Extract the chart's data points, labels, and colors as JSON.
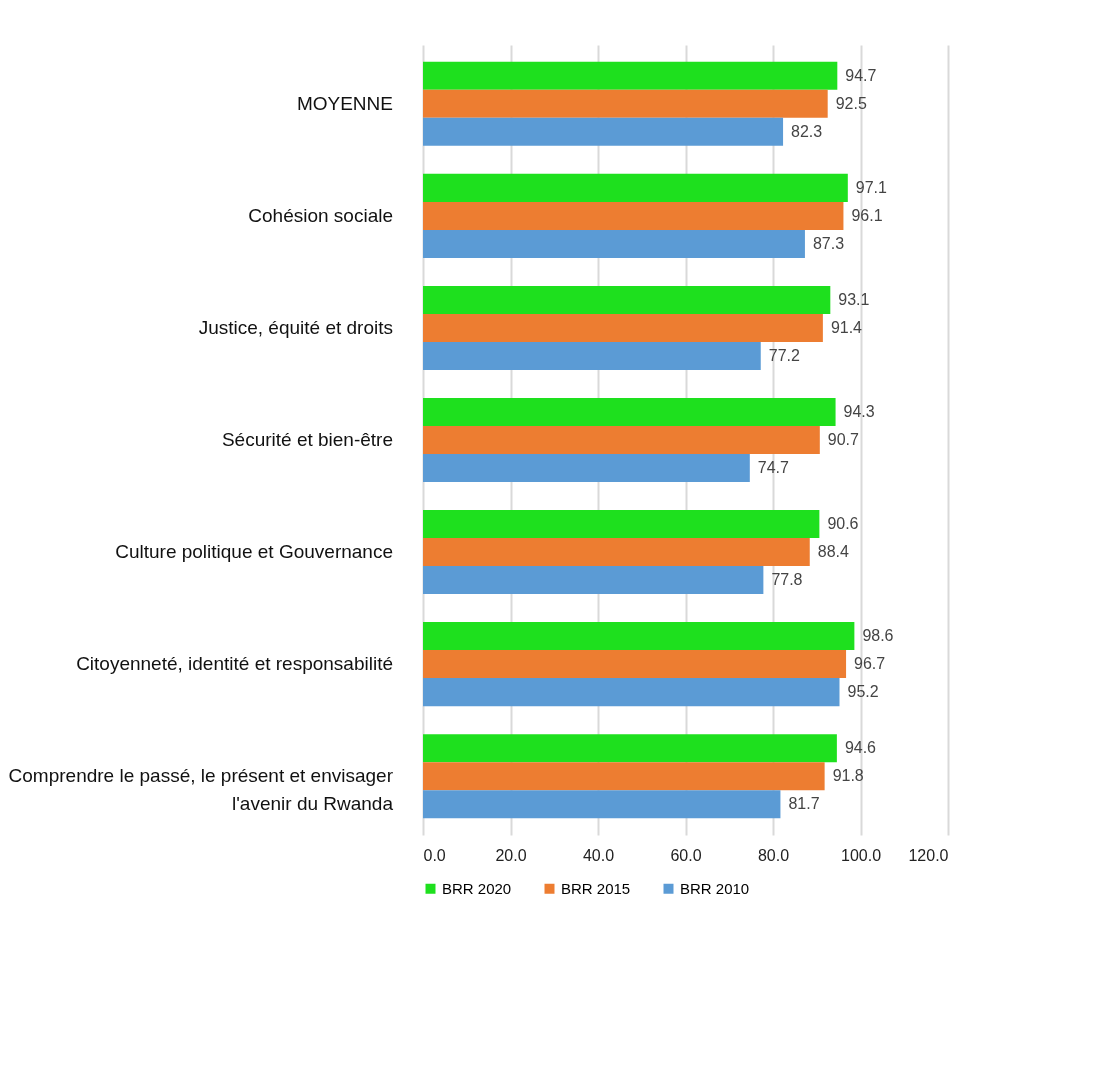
{
  "chart_data": {
    "type": "bar",
    "orientation": "horizontal",
    "categories": [
      "MOYENNE",
      "Cohésion sociale",
      "Justice, équité et droits",
      "Sécurité et bien-être",
      "Culture politique et Gouvernance",
      "Citoyenneté, identité et responsabilité",
      "Comprendre le passé, le présent et envisager\nl'avenir du Rwanda"
    ],
    "series": [
      {
        "name": "BRR 2020",
        "color": "#1ee01e",
        "values": [
          94.7,
          97.1,
          93.1,
          94.3,
          90.6,
          98.6,
          94.6
        ]
      },
      {
        "name": "BRR 2015",
        "color": "#ed7d31",
        "values": [
          92.5,
          96.1,
          91.4,
          90.7,
          88.4,
          96.7,
          91.8
        ]
      },
      {
        "name": "BRR 2010",
        "color": "#5b9bd5",
        "values": [
          82.3,
          87.3,
          77.2,
          74.7,
          77.8,
          95.2,
          81.7
        ]
      }
    ],
    "xlim": [
      0,
      120
    ],
    "xticks": [
      {
        "value": 0,
        "label": "0.0"
      },
      {
        "value": 20,
        "label": "20.0"
      },
      {
        "value": 40,
        "label": "40.0"
      },
      {
        "value": 60,
        "label": "60.0"
      },
      {
        "value": 80,
        "label": "80.0"
      },
      {
        "value": 100,
        "label": "100.0"
      },
      {
        "value": 120,
        "label": "120.0"
      }
    ],
    "grid": "x",
    "legend": "bottom",
    "data_labels": true
  }
}
